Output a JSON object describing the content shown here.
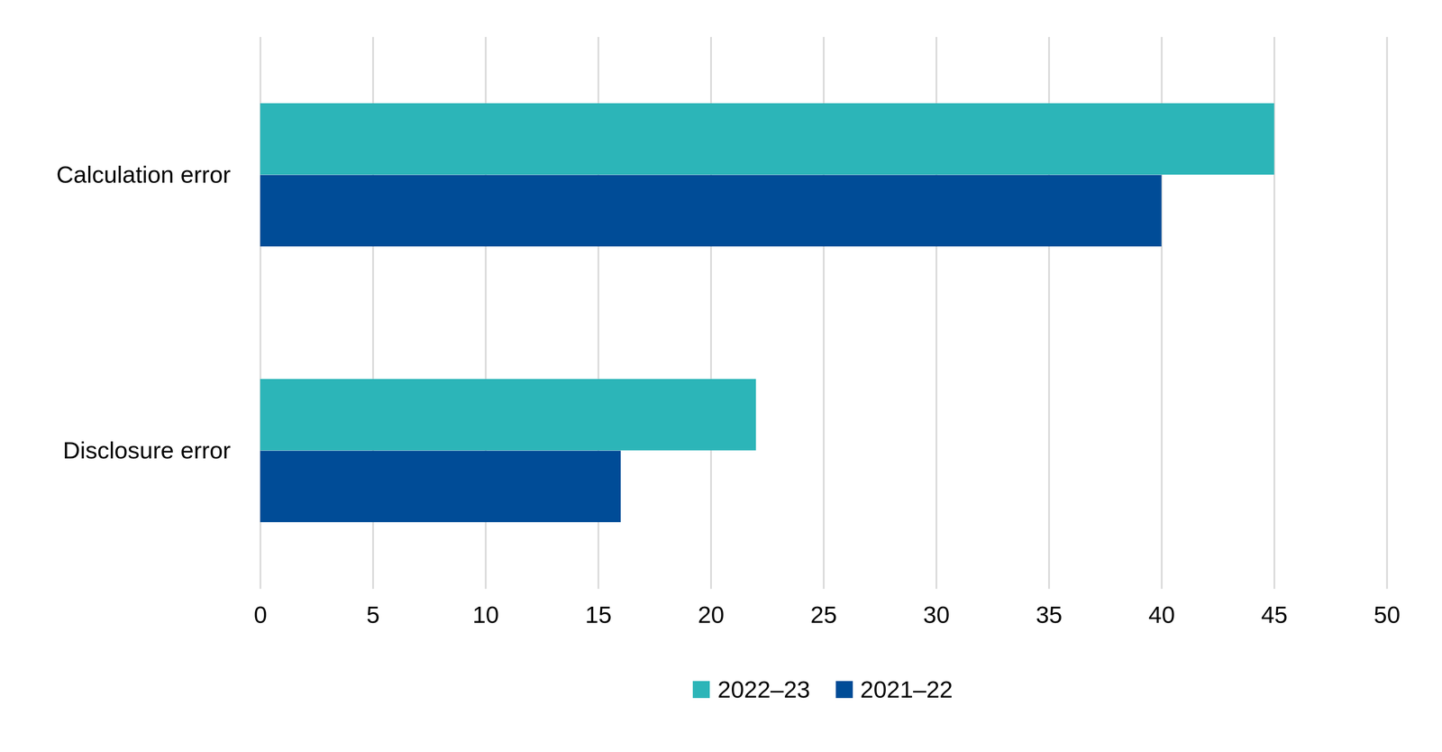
{
  "chart_data": {
    "type": "bar",
    "orientation": "horizontal",
    "categories": [
      "Calculation error",
      "Disclosure error"
    ],
    "series": [
      {
        "name": "2022–23",
        "color": "#2cb5b8",
        "values": [
          45,
          22
        ]
      },
      {
        "name": "2021–22",
        "color": "#004c97",
        "values": [
          40,
          16
        ]
      }
    ],
    "xlim": [
      0,
      50
    ],
    "xticks": [
      0,
      5,
      10,
      15,
      20,
      25,
      30,
      35,
      40,
      45,
      50
    ],
    "grid": true,
    "legend": "bottom"
  }
}
